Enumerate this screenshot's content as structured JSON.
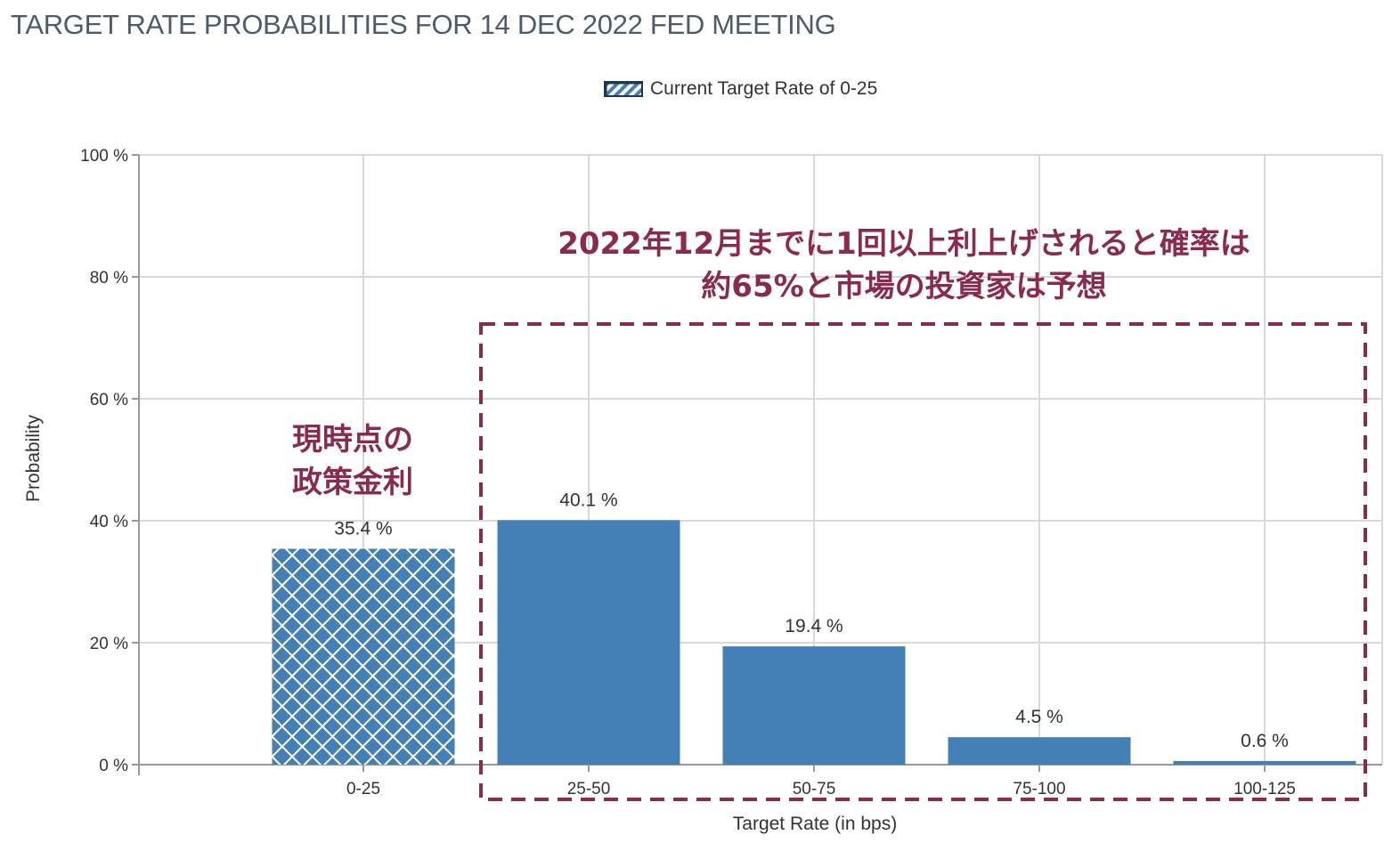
{
  "title": "TARGET RATE PROBABILITIES FOR 14 DEC 2022 FED MEETING",
  "legend_label": "Current Target Rate of 0-25",
  "annotations": {
    "main_line1": "2022年12月までに1回以上利上げされると確率は",
    "main_line2": "約65%と市場の投資家は予想",
    "current_line1": "現時点の",
    "current_line2": "政策金利"
  },
  "colors": {
    "bar": "#4480b6",
    "highlight_box": "#8b2a4f",
    "grid": "#d9d9d9"
  },
  "chart_data": {
    "type": "bar",
    "categories": [
      "0-25",
      "25-50",
      "50-75",
      "75-100",
      "100-125"
    ],
    "values": [
      35.4,
      40.1,
      19.4,
      4.5,
      0.6
    ],
    "data_labels": [
      "35.4 %",
      "40.1 %",
      "19.4 %",
      "4.5 %",
      "0.6 %"
    ],
    "current_category": "0-25",
    "xlabel": "Target Rate (in bps)",
    "ylabel": "Probability",
    "ylim": [
      0,
      100
    ],
    "yticks": [
      "0 %",
      "20 %",
      "40 %",
      "60 %",
      "80 %",
      "100 %"
    ],
    "grid": true,
    "legend_position": "top-center"
  }
}
